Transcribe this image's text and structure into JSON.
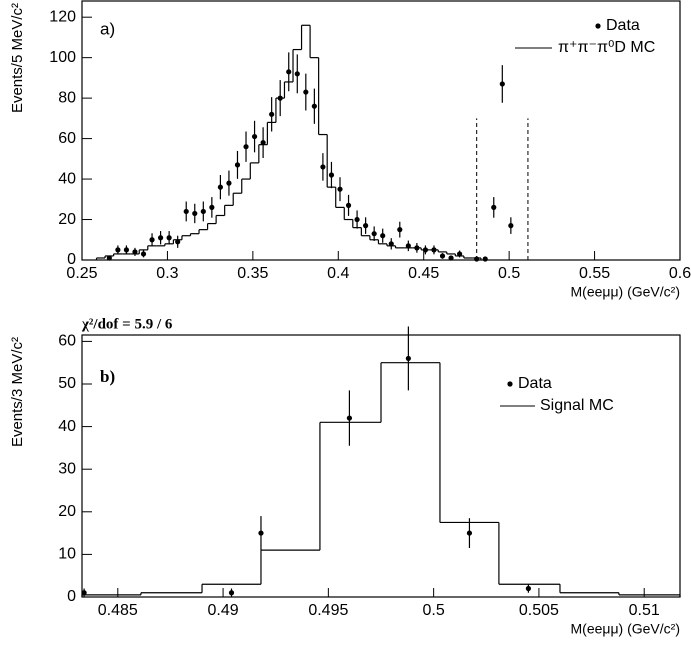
{
  "chart_data": [
    {
      "type": "histogram",
      "title": "a)",
      "x_label": "M(eeμμ) (GeV/c²)",
      "y_label": "Events/5 MeV/c²",
      "xlim": [
        0.25,
        0.6
      ],
      "ylim": [
        0,
        128
      ],
      "xticks": [
        0.25,
        0.3,
        0.35,
        0.4,
        0.45,
        0.5,
        0.55,
        0.6
      ],
      "yticks": [
        0,
        20,
        40,
        60,
        80,
        100,
        120
      ],
      "legend": "upper right",
      "data": {
        "name": "Data",
        "color": "#000000",
        "x": [
          0.266,
          0.271,
          0.276,
          0.281,
          0.286,
          0.291,
          0.296,
          0.301,
          0.306,
          0.311,
          0.316,
          0.321,
          0.326,
          0.331,
          0.336,
          0.341,
          0.346,
          0.351,
          0.356,
          0.361,
          0.366,
          0.371,
          0.376,
          0.381,
          0.386,
          0.391,
          0.396,
          0.401,
          0.406,
          0.411,
          0.416,
          0.421,
          0.426,
          0.431,
          0.436,
          0.441,
          0.446,
          0.451,
          0.456,
          0.461,
          0.466,
          0.471,
          0.481,
          0.486,
          0.491,
          0.496,
          0.501
        ],
        "values": [
          1,
          5,
          5,
          4,
          3,
          10,
          11,
          11,
          9,
          24,
          23,
          24,
          26,
          36,
          38,
          47,
          56,
          61,
          58,
          72,
          80,
          93,
          92,
          83,
          76,
          46,
          42,
          35,
          27,
          20,
          17,
          13,
          12,
          8,
          15,
          7,
          6,
          5,
          5,
          2,
          1,
          3,
          0.5,
          0.5,
          26,
          87,
          17
        ],
        "errors": [
          1,
          2.2,
          2.2,
          2,
          1.7,
          3.2,
          3.3,
          3.3,
          3,
          4.9,
          4.8,
          4.9,
          5.1,
          6,
          6.2,
          6.9,
          7.5,
          7.8,
          7.6,
          8.5,
          8.9,
          9.6,
          9.6,
          9.1,
          8.7,
          6.8,
          6.5,
          5.9,
          5.2,
          4.5,
          4.1,
          3.6,
          3.5,
          2.8,
          3.9,
          2.6,
          2.4,
          2.2,
          2.2,
          1.4,
          1,
          1.7,
          0.5,
          0.5,
          5.1,
          9.3,
          4.1
        ]
      },
      "mc": {
        "name": "π⁺π⁻π⁰D MC",
        "color": "#000000",
        "bins": [
          0.2585,
          0.2635,
          0.2685,
          0.2735,
          0.2785,
          0.2835,
          0.2885,
          0.2935,
          0.2985,
          0.3035,
          0.3085,
          0.3135,
          0.3185,
          0.3235,
          0.3285,
          0.3335,
          0.3385,
          0.3435,
          0.3485,
          0.3535,
          0.3585,
          0.3635,
          0.3685,
          0.3735,
          0.3785,
          0.3835,
          0.3885,
          0.3935,
          0.3985,
          0.4035,
          0.4085,
          0.4135,
          0.4185,
          0.4235,
          0.4285,
          0.4335,
          0.4385,
          0.4435,
          0.4485,
          0.4535,
          0.4585,
          0.4635,
          0.4685,
          0.4735,
          0.4785,
          0.4835
        ],
        "counts": [
          1,
          2,
          3,
          3,
          3,
          5,
          7,
          7,
          8,
          10,
          12,
          13,
          15,
          18,
          22,
          27,
          33,
          40,
          48,
          57,
          68,
          80,
          88,
          104,
          116,
          100,
          62,
          36,
          26,
          20,
          16,
          12,
          10,
          8,
          7,
          6,
          6,
          6,
          5,
          5,
          4,
          3,
          2,
          1,
          1
        ]
      },
      "cut_lines": [
        0.481,
        0.511
      ],
      "cut_height": 70
    },
    {
      "type": "histogram",
      "title": "b)",
      "annotation": "χ²/dof = 5.9 / 6",
      "x_label": "M(eeμμ) (GeV/c²)",
      "y_label": "Events/3 MeV/c²",
      "xlim": [
        0.4833,
        0.5117
      ],
      "ylim": [
        0,
        61.5
      ],
      "xticks": [
        0.485,
        0.49,
        0.495,
        0.5,
        0.505,
        0.51
      ],
      "yticks": [
        0,
        10,
        20,
        30,
        40,
        50,
        60
      ],
      "legend": "upper right",
      "data": {
        "name": "Data",
        "color": "#000000",
        "x": [
          0.4834,
          0.4904,
          0.4918,
          0.496,
          0.4988,
          0.5017,
          0.5045
        ],
        "values": [
          1,
          1,
          15,
          42,
          56,
          15,
          2
        ],
        "errors": [
          1,
          1,
          4,
          6.5,
          7.5,
          3.5,
          1
        ]
      },
      "mc": {
        "name": "Signal MC",
        "color": "#000000",
        "bins": [
          0.4833,
          0.4861,
          0.489,
          0.4918,
          0.4946,
          0.4975,
          0.5003,
          0.5031,
          0.506,
          0.5088,
          0.5117
        ],
        "counts": [
          0.5,
          1,
          3,
          11,
          41,
          55,
          17.5,
          3,
          1,
          0.5
        ]
      }
    }
  ]
}
